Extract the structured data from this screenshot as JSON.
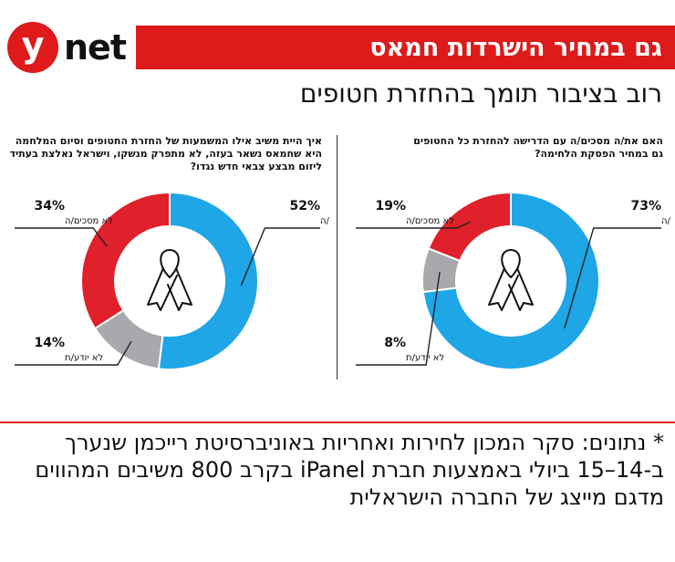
{
  "brand": {
    "logo_letter": "y",
    "logo_word": "net"
  },
  "banner": "גם במחיר הישרדות חמאס",
  "headline": "רוב בציבור תומך בהחזרת חטופים",
  "colors": {
    "agree": "#1ea6e6",
    "disagree": "#e0202a",
    "unknown": "#a7a9ac",
    "accent": "#de1a1a"
  },
  "chart_data": [
    {
      "type": "pie",
      "title": "האם את/ה מסכים/ה עם הדרישה להחזרת כל החטופים גם במחיר הפסקת הלחימה?",
      "slices": [
        {
          "label": "מסכים/ה",
          "pct_text": "73%",
          "value": 73,
          "color": "#1ea6e6"
        },
        {
          "label": "לא יודע/ת",
          "pct_text": "8%",
          "value": 8,
          "color": "#a7a9ac"
        },
        {
          "label": "לא מסכים/ה",
          "pct_text": "19%",
          "value": 19,
          "color": "#e0202a"
        }
      ]
    },
    {
      "type": "pie",
      "title": "איך היית משיב אילו המשמעות של החזרת החטופים וסיום המלחמה היא שחמאס נשאר בעזה, לא מתפרק מנשקו, וישראל נאלצת בעתיד ליזום מבצע צבאי חדש נגדו?",
      "slices": [
        {
          "label": "מסכים/ה",
          "pct_text": "52%",
          "value": 52,
          "color": "#1ea6e6"
        },
        {
          "label": "לא יודע/ת",
          "pct_text": "14%",
          "value": 14,
          "color": "#a7a9ac"
        },
        {
          "label": "לא מסכים/ה",
          "pct_text": "34%",
          "value": 34,
          "color": "#e0202a"
        }
      ]
    }
  ],
  "footnote": "* נתונים: סקר המכון לחירות ואחריות באוניברסיטת רייכמן שנערך ב-14–15 ביולי באמצעות חברת iPanel בקרב 800 משיבים המהווים מדגם מייצג של החברה הישראלית"
}
